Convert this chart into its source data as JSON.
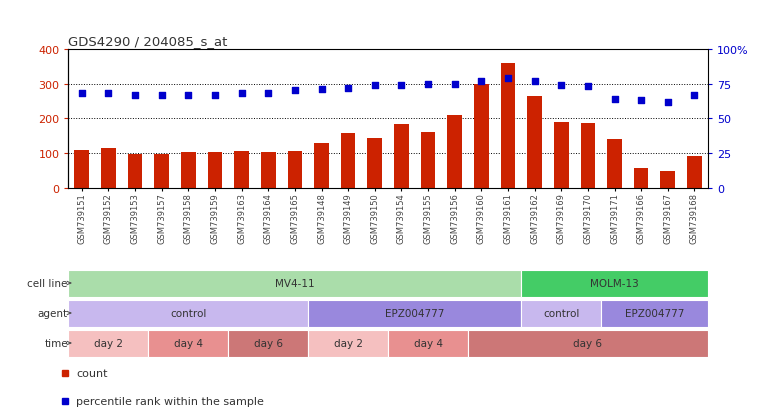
{
  "title": "GDS4290 / 204085_s_at",
  "samples": [
    "GSM739151",
    "GSM739152",
    "GSM739153",
    "GSM739157",
    "GSM739158",
    "GSM739159",
    "GSM739163",
    "GSM739164",
    "GSM739165",
    "GSM739148",
    "GSM739149",
    "GSM739150",
    "GSM739154",
    "GSM739155",
    "GSM739156",
    "GSM739160",
    "GSM739161",
    "GSM739162",
    "GSM739169",
    "GSM739170",
    "GSM739171",
    "GSM739166",
    "GSM739167",
    "GSM739168"
  ],
  "bar_values": [
    110,
    115,
    97,
    97,
    103,
    103,
    105,
    103,
    105,
    128,
    157,
    143,
    183,
    162,
    210,
    298,
    358,
    265,
    190,
    188,
    142,
    57,
    49,
    93
  ],
  "dot_values": [
    68,
    68,
    67,
    67,
    67,
    67,
    68,
    68,
    70,
    71,
    72,
    74,
    74,
    75,
    75,
    77,
    79,
    77,
    74,
    73,
    64,
    63,
    62,
    67
  ],
  "bar_color": "#cc2200",
  "dot_color": "#0000cc",
  "ylim_left": [
    0,
    400
  ],
  "ylim_right": [
    0,
    100
  ],
  "yticks_left": [
    0,
    100,
    200,
    300,
    400
  ],
  "yticks_right": [
    0,
    25,
    50,
    75,
    100
  ],
  "ytick_labels_right": [
    "0",
    "25",
    "50",
    "75",
    "100%"
  ],
  "grid_values": [
    100,
    200,
    300
  ],
  "cell_line_data": [
    {
      "label": "MV4-11",
      "start": 0,
      "end": 17,
      "color": "#aaddaa"
    },
    {
      "label": "MOLM-13",
      "start": 17,
      "end": 24,
      "color": "#44cc66"
    }
  ],
  "agent_data": [
    {
      "label": "control",
      "start": 0,
      "end": 9,
      "color": "#c8b8ee"
    },
    {
      "label": "EPZ004777",
      "start": 9,
      "end": 17,
      "color": "#9988dd"
    },
    {
      "label": "control",
      "start": 17,
      "end": 20,
      "color": "#c8b8ee"
    },
    {
      "label": "EPZ004777",
      "start": 20,
      "end": 24,
      "color": "#9988dd"
    }
  ],
  "time_data": [
    {
      "label": "day 2",
      "start": 0,
      "end": 3,
      "color": "#f5c0c0"
    },
    {
      "label": "day 4",
      "start": 3,
      "end": 6,
      "color": "#e89090"
    },
    {
      "label": "day 6",
      "start": 6,
      "end": 9,
      "color": "#cc7777"
    },
    {
      "label": "day 2",
      "start": 9,
      "end": 12,
      "color": "#f5c0c0"
    },
    {
      "label": "day 4",
      "start": 12,
      "end": 15,
      "color": "#e89090"
    },
    {
      "label": "day 6",
      "start": 15,
      "end": 24,
      "color": "#cc7777"
    }
  ],
  "row_labels": [
    "cell line",
    "agent",
    "time"
  ],
  "legend_items": [
    {
      "label": "count",
      "color": "#cc2200"
    },
    {
      "label": "percentile rank within the sample",
      "color": "#0000cc"
    }
  ]
}
